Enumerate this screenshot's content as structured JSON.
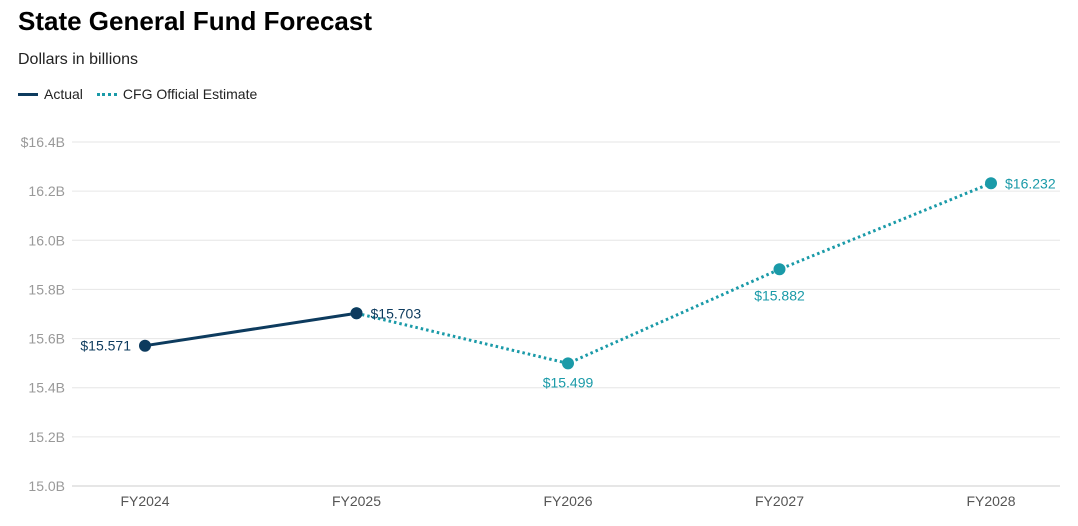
{
  "chart_data": {
    "type": "line",
    "title": "State General Fund Forecast",
    "subtitle": "Dollars in billions",
    "categories": [
      "FY2024",
      "FY2025",
      "FY2026",
      "FY2027",
      "FY2028"
    ],
    "yticks": [
      "15.0B",
      "15.2B",
      "15.4B",
      "15.6B",
      "15.8B",
      "16.0B",
      "16.2B",
      "$16.4B"
    ],
    "ylim": [
      15.0,
      16.4
    ],
    "grid": true,
    "legend_position": "top-left",
    "series": [
      {
        "name": "Actual",
        "color": "#0d3b5e",
        "style": "solid",
        "values": [
          15.571,
          15.703,
          null,
          null,
          null
        ],
        "labels": [
          "$15.571",
          "$15.703",
          null,
          null,
          null
        ]
      },
      {
        "name": "CFG Official Estimate",
        "color": "#1a9aa8",
        "style": "dotted",
        "values": [
          null,
          15.703,
          15.499,
          15.882,
          16.232
        ],
        "labels": [
          null,
          null,
          "$15.499",
          "$15.882",
          "$16.232"
        ]
      }
    ]
  }
}
